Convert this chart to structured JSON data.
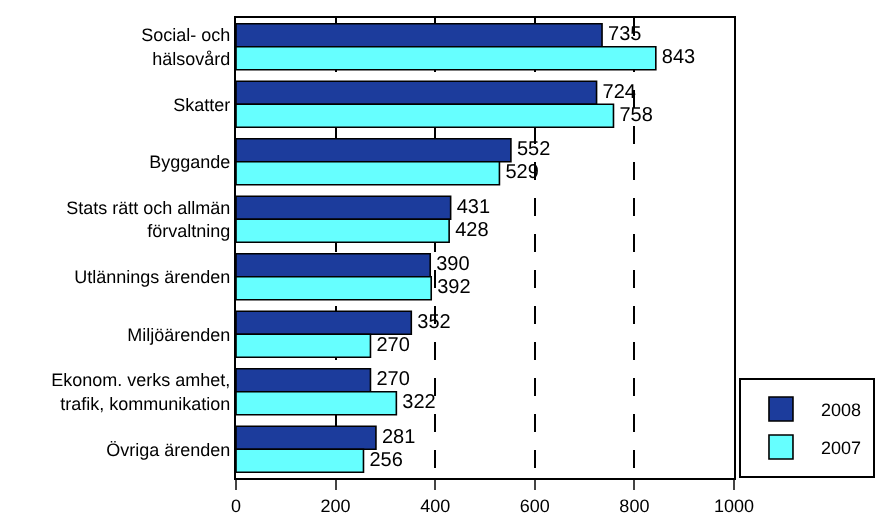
{
  "chart_data": {
    "type": "bar",
    "orientation": "horizontal",
    "categories": [
      "Social- och\nhälsovård",
      "Skatter",
      "Byggande",
      "Stats rätt och allmän\nförvaltning",
      "Utlännings ärenden",
      "Miljöärenden",
      "Ekonom. verks amhet,\ntrafik, kommunikation",
      "Övriga ärenden"
    ],
    "series": [
      {
        "name": "2008",
        "color": "#1c3c9c",
        "values": [
          735,
          724,
          552,
          431,
          390,
          352,
          270,
          281
        ]
      },
      {
        "name": "2007",
        "color": "#66ffff",
        "values": [
          843,
          758,
          529,
          428,
          392,
          270,
          322,
          256
        ]
      }
    ],
    "xlim": [
      0,
      1000
    ],
    "xticks": [
      0,
      200,
      400,
      600,
      800,
      1000
    ],
    "grid": "x",
    "data_labels": true,
    "legend": "bottom right"
  }
}
